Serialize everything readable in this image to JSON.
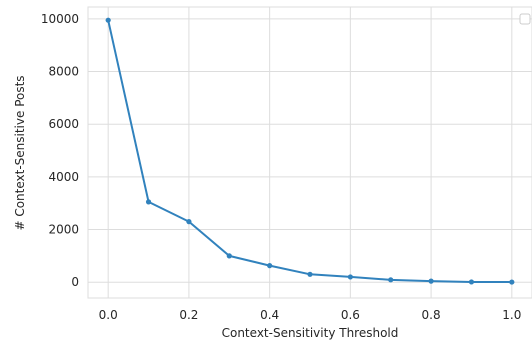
{
  "chart_data": {
    "type": "line",
    "title": "",
    "xlabel": "Context-Sensitivity Threshold",
    "ylabel": "# Context-Sensitive Posts",
    "xlim": [
      -0.05,
      1.05
    ],
    "ylim": [
      -600,
      10450
    ],
    "xticks": [
      0.0,
      0.2,
      0.4,
      0.6,
      0.8,
      1.0
    ],
    "xtick_labels": [
      "0.0",
      "0.2",
      "0.4",
      "0.6",
      "0.8",
      "1.0"
    ],
    "yticks": [
      0,
      2000,
      4000,
      6000,
      8000,
      10000
    ],
    "ytick_labels": [
      "0",
      "2000",
      "4000",
      "6000",
      "8000",
      "10000"
    ],
    "grid": true,
    "legend": "top-right",
    "series": [
      {
        "color": "#3182bd",
        "x": [
          0.0,
          0.1,
          0.2,
          0.3,
          0.4,
          0.5,
          0.6,
          0.7,
          0.8,
          0.9,
          1.0
        ],
        "y": [
          9950,
          3050,
          2300,
          1000,
          630,
          300,
          200,
          90,
          40,
          10,
          5
        ]
      }
    ]
  }
}
